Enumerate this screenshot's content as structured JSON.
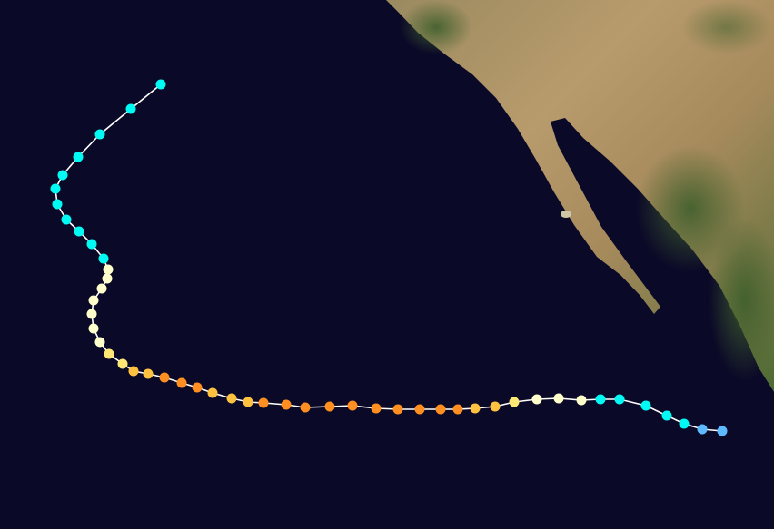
{
  "map": {
    "ocean_color": "#0b0928",
    "land_colors": {
      "desert": "#b4976a",
      "dry": "#9c8558",
      "vegetation": "#4f6b34"
    },
    "track_line_color": "#ffffff",
    "intensity_colors": {
      "TD": "#5ebaff",
      "TS": "#00faf4",
      "C1": "#ffffcc",
      "C2": "#ffe775",
      "C3": "#ffc140",
      "C4": "#ff8f20"
    },
    "track_intensities": [
      "TD",
      "TD",
      "TS",
      "TS",
      "TS",
      "TS",
      "TS",
      "C1",
      "C1",
      "C1",
      "C2",
      "C3",
      "C3",
      "C4",
      "C4",
      "C4",
      "C4",
      "C4",
      "C4",
      "C4",
      "C4",
      "C4",
      "C4",
      "C3",
      "C3",
      "C3",
      "C4",
      "C4",
      "C4",
      "C3",
      "C3",
      "C2",
      "C2",
      "C1",
      "C1",
      "C1",
      "C1",
      "C1",
      "C1",
      "C1",
      "TS",
      "TS",
      "TS",
      "TS",
      "TS",
      "TS",
      "TS",
      "TS",
      "TS",
      "TS",
      "TS"
    ]
  }
}
